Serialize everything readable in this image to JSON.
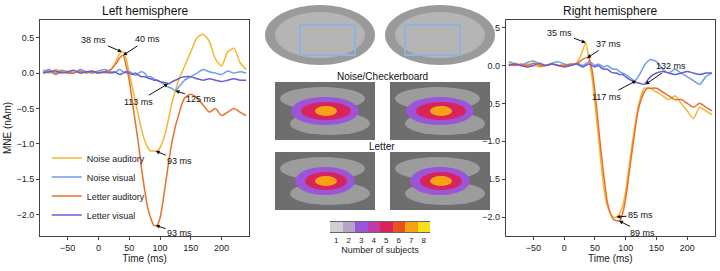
{
  "chart_data": [
    {
      "type": "line",
      "title": "Left hemisphere",
      "x_label": "Time (ms)",
      "y_label": "MNE (nAm)",
      "x": [
        -90,
        -80,
        -70,
        -60,
        -50,
        -40,
        -30,
        -20,
        -10,
        0,
        10,
        20,
        25,
        30,
        35,
        40,
        45,
        50,
        55,
        60,
        65,
        70,
        75,
        80,
        85,
        90,
        95,
        100,
        105,
        110,
        115,
        120,
        125,
        130,
        135,
        140,
        150,
        160,
        170,
        180,
        190,
        200,
        210,
        220,
        230,
        240
      ],
      "xlim": [
        -95,
        245
      ],
      "xticks": [
        {
          "value": -50,
          "label": "−50"
        },
        0,
        50,
        100,
        150,
        200
      ],
      "ylim": [
        -2.3,
        0.75
      ],
      "yticks": [
        {
          "value": -2,
          "label": "−2.0"
        },
        {
          "value": -1.5,
          "label": "−1.5"
        },
        {
          "value": -1,
          "label": "−1.0"
        },
        {
          "value": -0.5,
          "label": "−0.5"
        },
        {
          "value": 0,
          "label": "0.0"
        },
        {
          "value": 0.5,
          "label": "0.5"
        }
      ],
      "legend": "lower left",
      "series": [
        {
          "name": "Noise auditory",
          "color": "#f5b731",
          "values": [
            0.05,
            0.0,
            0.05,
            0.02,
            0.0,
            0.03,
            0.0,
            0.02,
            0.0,
            0.03,
            0.0,
            0.05,
            0.1,
            0.2,
            0.28,
            0.3,
            0.2,
            0.0,
            -0.2,
            -0.4,
            -0.6,
            -0.8,
            -0.95,
            -1.05,
            -1.1,
            -1.1,
            -1.1,
            -1.05,
            -0.95,
            -0.8,
            -0.6,
            -0.4,
            -0.25,
            -0.1,
            0.0,
            0.1,
            0.3,
            0.5,
            0.55,
            0.45,
            0.2,
            0.1,
            0.3,
            0.35,
            0.15,
            0.05
          ]
        },
        {
          "name": "Noise visual",
          "color": "#6f9fe6",
          "values": [
            0.02,
            0.05,
            0.0,
            0.04,
            0.02,
            0.0,
            0.05,
            0.02,
            0.0,
            0.03,
            0.05,
            0.02,
            0.0,
            0.03,
            0.05,
            0.02,
            0.0,
            0.02,
            0.0,
            -0.03,
            0.0,
            0.02,
            0.0,
            -0.05,
            -0.05,
            -0.08,
            -0.1,
            -0.12,
            -0.15,
            -0.18,
            -0.2,
            -0.22,
            -0.25,
            -0.2,
            -0.15,
            -0.1,
            -0.05,
            0.0,
            0.05,
            0.02,
            0.0,
            -0.02,
            0.03,
            0.0,
            0.02,
            0.0
          ]
        },
        {
          "name": "Letter auditory",
          "color": "#e8702a",
          "values": [
            0.0,
            0.03,
            -0.02,
            0.02,
            0.0,
            0.0,
            0.03,
            0.0,
            0.02,
            0.0,
            0.02,
            0.05,
            0.1,
            0.15,
            0.22,
            0.25,
            0.1,
            -0.1,
            -0.4,
            -0.7,
            -1.0,
            -1.35,
            -1.65,
            -1.9,
            -2.05,
            -2.15,
            -2.15,
            -2.05,
            -1.8,
            -1.5,
            -1.2,
            -0.95,
            -0.75,
            -0.6,
            -0.45,
            -0.35,
            -0.3,
            -0.35,
            -0.45,
            -0.55,
            -0.5,
            -0.6,
            -0.55,
            -0.5,
            -0.55,
            -0.6
          ]
        },
        {
          "name": "Letter visual",
          "color": "#6a5bd6",
          "values": [
            0.0,
            0.02,
            0.03,
            0.0,
            0.02,
            0.04,
            0.0,
            0.02,
            0.03,
            0.0,
            0.02,
            0.0,
            0.02,
            0.0,
            -0.02,
            0.0,
            0.02,
            0.0,
            -0.02,
            0.0,
            -0.03,
            -0.05,
            -0.05,
            -0.07,
            -0.08,
            -0.1,
            -0.1,
            -0.12,
            -0.13,
            -0.14,
            -0.15,
            -0.12,
            -0.1,
            -0.08,
            -0.06,
            -0.05,
            -0.05,
            -0.08,
            -0.1,
            -0.08,
            -0.1,
            -0.12,
            -0.1,
            -0.08,
            -0.1,
            -0.1
          ]
        }
      ],
      "annotations": [
        {
          "text": "38 ms",
          "x": 38,
          "y": 0.3
        },
        {
          "text": "40 ms",
          "x": 40,
          "y": 0.25
        },
        {
          "text": "113 ms",
          "x": 113,
          "y": -0.15
        },
        {
          "text": "125 ms",
          "x": 125,
          "y": -0.25
        },
        {
          "text": "93 ms",
          "x": 93,
          "y": -1.1
        },
        {
          "text": "93 ms",
          "x": 93,
          "y": -2.15
        }
      ]
    },
    {
      "type": "line",
      "title": "Right hemisphere",
      "x_label": "Time (ms)",
      "x": [
        -90,
        -80,
        -70,
        -60,
        -50,
        -40,
        -30,
        -20,
        -10,
        0,
        10,
        20,
        25,
        30,
        35,
        40,
        45,
        50,
        55,
        60,
        65,
        70,
        75,
        80,
        85,
        90,
        95,
        100,
        105,
        110,
        115,
        120,
        125,
        130,
        135,
        140,
        150,
        160,
        170,
        180,
        190,
        200,
        210,
        220,
        230,
        240
      ],
      "xlim": [
        -95,
        245
      ],
      "xticks": [
        {
          "value": -50,
          "label": "−50"
        },
        0,
        50,
        100,
        150,
        200
      ],
      "ylim": [
        -2.25,
        0.6
      ],
      "yticks": [
        {
          "value": -2,
          "label": "−2.0"
        },
        {
          "value": -1.5,
          "label": "−1.5"
        },
        {
          "value": -1,
          "label": "−1.0"
        },
        {
          "value": -0.5,
          "label": "−0.5"
        },
        {
          "value": 0,
          "label": "0.0"
        },
        {
          "value": 0.5,
          "label": "0.5"
        }
      ],
      "series": [
        {
          "name": "Noise auditory",
          "color": "#f5b731",
          "values": [
            0.0,
            0.03,
            0.0,
            0.02,
            0.0,
            -0.02,
            0.0,
            0.02,
            0.0,
            0.02,
            0.0,
            0.03,
            0.1,
            0.2,
            0.3,
            0.1,
            -0.15,
            -0.5,
            -0.9,
            -1.3,
            -1.65,
            -1.85,
            -1.95,
            -2.0,
            -2.0,
            -1.95,
            -1.85,
            -1.65,
            -1.35,
            -1.05,
            -0.8,
            -0.55,
            -0.4,
            -0.3,
            -0.3,
            -0.3,
            -0.35,
            -0.4,
            -0.45,
            -0.4,
            -0.5,
            -0.6,
            -0.7,
            -0.55,
            -0.6,
            -0.65
          ]
        },
        {
          "name": "Noise visual",
          "color": "#6f9fe6",
          "values": [
            0.05,
            0.02,
            0.0,
            0.04,
            0.06,
            0.02,
            0.0,
            0.03,
            0.05,
            0.02,
            0.0,
            0.03,
            0.02,
            0.0,
            0.02,
            0.05,
            0.03,
            0.0,
            0.02,
            0.0,
            -0.02,
            0.0,
            -0.03,
            -0.05,
            -0.05,
            -0.08,
            -0.1,
            -0.12,
            -0.15,
            -0.18,
            -0.2,
            -0.15,
            -0.08,
            0.0,
            0.05,
            0.08,
            0.05,
            -0.05,
            -0.1,
            -0.05,
            -0.1,
            -0.15,
            -0.2,
            -0.25,
            -0.15,
            -0.1
          ]
        },
        {
          "name": "Letter auditory",
          "color": "#e8702a",
          "values": [
            0.02,
            0.0,
            0.02,
            0.0,
            0.03,
            0.0,
            0.0,
            0.02,
            0.0,
            0.0,
            0.02,
            0.02,
            0.05,
            0.08,
            0.1,
            0.1,
            -0.05,
            -0.35,
            -0.75,
            -1.15,
            -1.5,
            -1.8,
            -1.95,
            -2.03,
            -2.05,
            -2.05,
            -1.95,
            -1.75,
            -1.45,
            -1.15,
            -0.85,
            -0.6,
            -0.45,
            -0.35,
            -0.3,
            -0.3,
            -0.3,
            -0.35,
            -0.4,
            -0.45,
            -0.45,
            -0.5,
            -0.55,
            -0.5,
            -0.55,
            -0.6
          ]
        },
        {
          "name": "Letter visual",
          "color": "#6a5bd6",
          "values": [
            0.0,
            0.02,
            0.0,
            -0.02,
            0.0,
            0.03,
            0.0,
            0.02,
            0.0,
            -0.02,
            0.0,
            0.02,
            0.0,
            -0.02,
            0.0,
            0.02,
            0.0,
            -0.02,
            0.0,
            -0.03,
            -0.05,
            -0.05,
            -0.08,
            -0.1,
            -0.1,
            -0.12,
            -0.12,
            -0.15,
            -0.18,
            -0.2,
            -0.22,
            -0.23,
            -0.24,
            -0.25,
            -0.2,
            -0.15,
            -0.1,
            -0.08,
            -0.1,
            -0.12,
            -0.1,
            -0.08,
            -0.1,
            -0.12,
            -0.1,
            -0.1
          ]
        }
      ],
      "annotations": [
        {
          "text": "35 ms",
          "x": 35,
          "y": 0.3
        },
        {
          "text": "37 ms",
          "x": 37,
          "y": 0.1
        },
        {
          "text": "132 ms",
          "x": 132,
          "y": -0.25
        },
        {
          "text": "117 ms",
          "x": 117,
          "y": -0.2
        },
        {
          "text": "85 ms",
          "x": 85,
          "y": -2.0
        },
        {
          "text": "89 ms",
          "x": 89,
          "y": -2.05
        }
      ]
    },
    {
      "type": "heatmap",
      "x_label": "Number of subjects",
      "x": [
        1,
        2,
        3,
        4,
        5,
        6,
        7,
        8
      ],
      "cells": [
        [
          1,
          2,
          3,
          4,
          5,
          6,
          7,
          8
        ]
      ],
      "colors": [
        "#cfcfcf",
        "#b7a3c9",
        "#9b55d9",
        "#c03ca8",
        "#d8235c",
        "#e8521f",
        "#f5a214",
        "#f7e11a"
      ],
      "xlim": [
        0.5,
        8.5
      ],
      "xticks": [
        1,
        2,
        3,
        4,
        5,
        6,
        7,
        8
      ]
    }
  ],
  "brain_panels": {
    "labels": [
      "Noise/Checkerboard",
      "Letter"
    ]
  }
}
